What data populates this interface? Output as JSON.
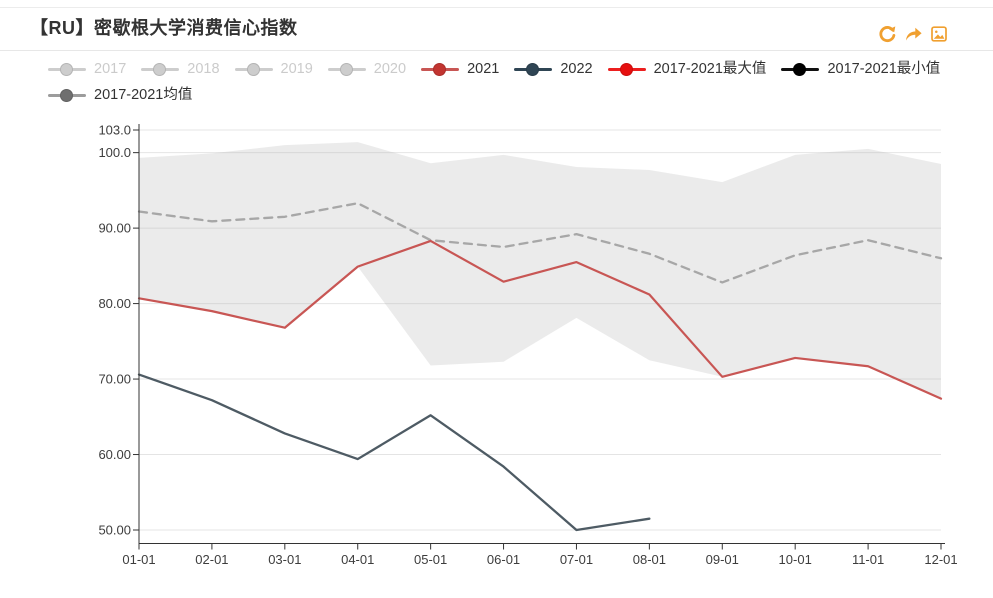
{
  "header": {
    "title": "【RU】密歇根大学消费信心指数",
    "icons": [
      {
        "name": "refresh-icon"
      },
      {
        "name": "share-icon"
      },
      {
        "name": "save-image-icon"
      }
    ],
    "icon_color": "#f0a030"
  },
  "legend": {
    "rows": [
      [
        {
          "label": "2017",
          "marker_color": "#cdcdcd",
          "dot_color": "#cdcdcd",
          "text_color": "#cbcbcb",
          "enabled": false
        },
        {
          "label": "2018",
          "marker_color": "#cdcdcd",
          "dot_color": "#cdcdcd",
          "text_color": "#cbcbcb",
          "enabled": false
        },
        {
          "label": "2019",
          "marker_color": "#cdcdcd",
          "dot_color": "#cdcdcd",
          "text_color": "#cbcbcb",
          "enabled": false
        },
        {
          "label": "2020",
          "marker_color": "#cdcdcd",
          "dot_color": "#cdcdcd",
          "text_color": "#cbcbcb",
          "enabled": false
        },
        {
          "label": "2021",
          "marker_color": "#c85654",
          "dot_color": "#c23531",
          "text_color": "#333333",
          "enabled": true
        },
        {
          "label": "2022",
          "marker_color": "#2f4554",
          "dot_color": "#2f4554",
          "text_color": "#333333",
          "enabled": true
        },
        {
          "label": "2017-2021最大值",
          "marker_color": "#ec1f1f",
          "dot_color": "#e60f0f",
          "text_color": "#333333",
          "enabled": true
        },
        {
          "label": "2017-2021最小值",
          "marker_color": "#111111",
          "dot_color": "#000000",
          "text_color": "#333333",
          "enabled": true
        }
      ],
      [
        {
          "label": "2017-2021均值",
          "marker_color": "#9c9c9c",
          "dot_color": "#6f6f6f",
          "text_color": "#333333",
          "enabled": true
        }
      ]
    ]
  },
  "chart_data": {
    "type": "line",
    "title": "【RU】密歇根大学消费信心指数",
    "categories": [
      "01-01",
      "02-01",
      "03-01",
      "04-01",
      "05-01",
      "06-01",
      "07-01",
      "08-01",
      "09-01",
      "10-01",
      "11-01",
      "12-01"
    ],
    "y_ticks": [
      {
        "label": "103.0",
        "value": 103
      },
      {
        "label": "100.0",
        "value": 100
      },
      {
        "label": "90.00",
        "value": 90
      },
      {
        "label": "80.00",
        "value": 80
      },
      {
        "label": "70.00",
        "value": 70
      },
      {
        "label": "60.00",
        "value": 60
      },
      {
        "label": "50.00",
        "value": 50
      }
    ],
    "ylim": [
      48.2,
      103
    ],
    "grid": true,
    "legend_position": "top",
    "band_fill": "rgba(174,174,174,0.25)",
    "series": [
      {
        "name": "2017-2021最大值",
        "type": "band-upper",
        "color": "rgba(174,174,174,0.25)",
        "values": [
          99.3,
          99.9,
          101.0,
          101.4,
          98.6,
          99.7,
          98.1,
          97.7,
          96.1,
          99.7,
          100.5,
          98.5
        ]
      },
      {
        "name": "2017-2021最小值",
        "type": "band-lower",
        "color": "rgba(174,174,174,0.25)",
        "values": [
          80.7,
          79.0,
          76.8,
          84.9,
          71.8,
          72.3,
          78.1,
          72.5,
          70.3,
          72.8,
          71.7,
          67.4
        ]
      },
      {
        "name": "2017-2021均值",
        "type": "line",
        "dash": "dashed",
        "color": "#a7a7a7",
        "width": 2.3,
        "values": [
          92.2,
          90.9,
          91.5,
          93.3,
          88.4,
          87.5,
          89.2,
          86.6,
          82.8,
          86.4,
          88.4,
          86.0
        ]
      },
      {
        "name": "2021",
        "type": "line",
        "dash": "solid",
        "color": "#c85654",
        "width": 2.2,
        "values": [
          80.7,
          79.0,
          76.8,
          84.9,
          88.3,
          82.9,
          85.5,
          81.2,
          70.3,
          72.8,
          71.7,
          67.4
        ]
      },
      {
        "name": "2022",
        "type": "line",
        "dash": "solid",
        "color": "#4e5b64",
        "width": 2.3,
        "values": [
          70.6,
          67.2,
          62.8,
          59.4,
          65.2,
          58.4,
          50.0,
          51.5
        ]
      }
    ],
    "disabled_series": [
      "2017",
      "2018",
      "2019",
      "2020"
    ],
    "axis_color": "#333333",
    "gridline_color": "#e4e4e4"
  }
}
